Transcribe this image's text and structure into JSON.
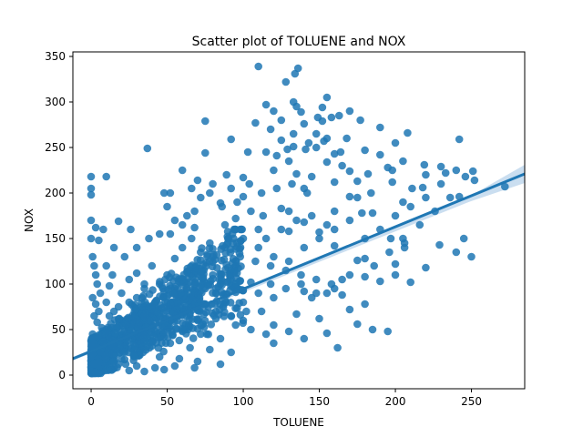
{
  "chart_data": {
    "type": "scatter",
    "title": "Scatter plot of TOLUENE and NOX",
    "xlabel": "TOLUENE",
    "ylabel": "NOX",
    "xlim": [
      -12,
      285
    ],
    "ylim": [
      -15,
      355
    ],
    "xticks": [
      0,
      50,
      100,
      150,
      200,
      250
    ],
    "yticks": [
      0,
      50,
      100,
      150,
      200,
      250,
      300,
      350
    ],
    "grid": false,
    "point_color": "#1f77b4",
    "regression_line": {
      "x": [
        -12,
        285
      ],
      "y": [
        18,
        221
      ],
      "color": "#1f77b4",
      "ci_color": "#a6c8e6"
    },
    "points": [
      [
        0,
        218
      ],
      [
        0,
        205
      ],
      [
        0,
        198
      ],
      [
        10,
        218
      ],
      [
        0,
        170
      ],
      [
        3,
        162
      ],
      [
        8,
        160
      ],
      [
        18,
        169
      ],
      [
        0,
        150
      ],
      [
        5,
        148
      ],
      [
        110,
        339
      ],
      [
        136,
        337
      ],
      [
        134,
        331
      ],
      [
        128,
        322
      ],
      [
        155,
        305
      ],
      [
        133,
        300
      ],
      [
        115,
        297
      ],
      [
        135,
        295
      ],
      [
        152,
        294
      ],
      [
        120,
        290
      ],
      [
        138,
        289
      ],
      [
        170,
        290
      ],
      [
        163,
        285
      ],
      [
        149,
        283
      ],
      [
        158,
        283
      ],
      [
        125,
        280
      ],
      [
        75,
        279
      ],
      [
        152,
        279
      ],
      [
        177,
        280
      ],
      [
        108,
        277
      ],
      [
        140,
        276
      ],
      [
        118,
        270
      ],
      [
        190,
        272
      ],
      [
        208,
        266
      ],
      [
        133,
        265
      ],
      [
        148,
        265
      ],
      [
        168,
        260
      ],
      [
        155,
        260
      ],
      [
        92,
        259
      ],
      [
        242,
        259
      ],
      [
        125,
        258
      ],
      [
        37,
        249
      ],
      [
        153,
        257
      ],
      [
        143,
        255
      ],
      [
        200,
        255
      ],
      [
        133,
        251
      ],
      [
        148,
        250
      ],
      [
        129,
        248
      ],
      [
        141,
        248
      ],
      [
        103,
        245
      ],
      [
        180,
        247
      ],
      [
        115,
        245
      ],
      [
        164,
        245
      ],
      [
        160,
        243
      ],
      [
        190,
        242
      ],
      [
        75,
        244
      ],
      [
        122,
        241
      ],
      [
        130,
        235
      ],
      [
        155,
        234
      ],
      [
        205,
        235
      ],
      [
        219,
        231
      ],
      [
        165,
        230
      ],
      [
        230,
        229
      ],
      [
        195,
        228
      ],
      [
        60,
        225
      ],
      [
        120,
        225
      ],
      [
        170,
        224
      ],
      [
        240,
        225
      ],
      [
        198,
        225
      ],
      [
        89,
        220
      ],
      [
        182,
        221
      ],
      [
        135,
        221
      ],
      [
        220,
        220
      ],
      [
        251,
        224
      ],
      [
        233,
        222
      ],
      [
        145,
        218
      ],
      [
        100,
        217
      ],
      [
        246,
        218
      ],
      [
        70,
        214
      ],
      [
        175,
        213
      ],
      [
        160,
        212
      ],
      [
        252,
        214
      ],
      [
        198,
        212
      ],
      [
        272,
        207
      ],
      [
        230,
        210
      ],
      [
        211,
        205
      ],
      [
        140,
        205
      ],
      [
        218,
        206
      ],
      [
        184,
        200
      ],
      [
        48,
        200
      ],
      [
        170,
        196
      ],
      [
        242,
        196
      ],
      [
        52,
        200
      ],
      [
        100,
        196
      ],
      [
        175,
        195
      ],
      [
        205,
        190
      ],
      [
        85,
        189
      ],
      [
        125,
        183
      ],
      [
        160,
        180
      ],
      [
        130,
        180
      ],
      [
        178,
        178
      ],
      [
        185,
        178
      ],
      [
        113,
        175
      ],
      [
        63,
        175
      ],
      [
        95,
        172
      ],
      [
        140,
        168
      ],
      [
        155,
        165
      ],
      [
        68,
        162
      ],
      [
        110,
        160
      ],
      [
        130,
        158
      ],
      [
        150,
        157
      ],
      [
        45,
        155
      ],
      [
        205,
        150
      ],
      [
        197,
        150
      ],
      [
        245,
        150
      ],
      [
        229,
        143
      ],
      [
        160,
        142
      ],
      [
        206,
        140
      ],
      [
        240,
        135
      ],
      [
        250,
        130
      ],
      [
        180,
        128
      ],
      [
        175,
        126
      ],
      [
        200,
        122
      ],
      [
        220,
        118
      ],
      [
        200,
        110
      ],
      [
        180,
        108
      ],
      [
        165,
        105
      ],
      [
        190,
        103
      ],
      [
        210,
        102
      ],
      [
        160,
        95
      ],
      [
        140,
        92
      ],
      [
        165,
        88
      ],
      [
        155,
        90
      ],
      [
        120,
        85
      ],
      [
        145,
        85
      ],
      [
        180,
        78
      ],
      [
        170,
        72
      ],
      [
        135,
        67
      ],
      [
        150,
        62
      ],
      [
        175,
        56
      ],
      [
        185,
        50
      ],
      [
        195,
        48
      ],
      [
        155,
        46
      ],
      [
        162,
        30
      ],
      [
        140,
        40
      ],
      [
        120,
        35
      ],
      [
        130,
        48
      ],
      [
        115,
        45
      ],
      [
        120,
        55
      ],
      [
        100,
        60
      ],
      [
        60,
        140
      ],
      [
        72,
        135
      ],
      [
        55,
        128
      ],
      [
        40,
        120
      ],
      [
        30,
        112
      ],
      [
        80,
        110
      ],
      [
        90,
        118
      ],
      [
        65,
        115
      ],
      [
        25,
        105
      ],
      [
        12,
        98
      ],
      [
        35,
        95
      ],
      [
        48,
        92
      ],
      [
        70,
        90
      ],
      [
        82,
        95
      ],
      [
        95,
        100
      ],
      [
        105,
        102
      ],
      [
        58,
        85
      ],
      [
        42,
        80
      ],
      [
        28,
        75
      ],
      [
        15,
        70
      ],
      [
        62,
        72
      ],
      [
        75,
        78
      ],
      [
        88,
        82
      ],
      [
        100,
        80
      ],
      [
        110,
        90
      ],
      [
        20,
        60
      ],
      [
        33,
        62
      ],
      [
        45,
        58
      ],
      [
        57,
        65
      ],
      [
        70,
        60
      ],
      [
        82,
        62
      ],
      [
        95,
        55
      ],
      [
        105,
        50
      ],
      [
        10,
        50
      ],
      [
        22,
        48
      ],
      [
        35,
        45
      ],
      [
        48,
        42
      ],
      [
        60,
        48
      ],
      [
        72,
        45
      ],
      [
        85,
        40
      ],
      [
        15,
        30
      ],
      [
        28,
        28
      ],
      [
        40,
        32
      ],
      [
        52,
        35
      ],
      [
        65,
        30
      ],
      [
        78,
        28
      ],
      [
        92,
        25
      ],
      [
        8,
        20
      ],
      [
        20,
        18
      ],
      [
        32,
        22
      ],
      [
        45,
        20
      ],
      [
        58,
        18
      ],
      [
        70,
        15
      ],
      [
        85,
        12
      ],
      [
        5,
        10
      ],
      [
        18,
        12
      ],
      [
        30,
        10
      ],
      [
        42,
        8
      ],
      [
        55,
        10
      ],
      [
        68,
        8
      ],
      [
        2,
        5
      ],
      [
        12,
        6
      ],
      [
        25,
        5
      ],
      [
        35,
        4
      ],
      [
        48,
        6
      ],
      [
        1,
        130
      ],
      [
        2,
        120
      ],
      [
        3,
        110
      ],
      [
        4,
        100
      ],
      [
        6,
        90
      ],
      [
        1,
        85
      ],
      [
        3,
        78
      ],
      [
        5,
        70
      ],
      [
        2,
        65
      ],
      [
        4,
        58
      ],
      [
        7,
        52
      ],
      [
        1,
        45
      ],
      [
        3,
        40
      ],
      [
        6,
        35
      ],
      [
        2,
        28
      ],
      [
        5,
        22
      ],
      [
        1,
        15
      ],
      [
        8,
        40
      ],
      [
        10,
        80
      ],
      [
        14,
        110
      ],
      [
        22,
        130
      ],
      [
        30,
        140
      ],
      [
        38,
        150
      ],
      [
        52,
        155
      ],
      [
        66,
        150
      ],
      [
        78,
        145
      ],
      [
        88,
        140
      ],
      [
        98,
        130
      ],
      [
        108,
        125
      ],
      [
        118,
        120
      ],
      [
        128,
        115
      ],
      [
        138,
        110
      ],
      [
        148,
        105
      ],
      [
        50,
        110
      ],
      [
        60,
        100
      ],
      [
        40,
        70
      ],
      [
        50,
        75
      ],
      [
        30,
        85
      ],
      [
        20,
        90
      ],
      [
        10,
        120
      ],
      [
        15,
        140
      ],
      [
        26,
        160
      ],
      [
        88,
        165
      ],
      [
        96,
        190
      ],
      [
        104,
        210
      ],
      [
        112,
        200
      ],
      [
        122,
        205
      ],
      [
        132,
        210
      ],
      [
        142,
        200
      ],
      [
        90,
        150
      ],
      [
        100,
        150
      ],
      [
        110,
        140
      ],
      [
        120,
        130
      ],
      [
        130,
        125
      ],
      [
        80,
        130
      ],
      [
        95,
        120
      ],
      [
        85,
        100
      ],
      [
        75,
        95
      ],
      [
        65,
        85
      ],
      [
        55,
        95
      ],
      [
        45,
        100
      ],
      [
        35,
        100
      ],
      [
        25,
        80
      ],
      [
        18,
        75
      ],
      [
        12,
        65
      ],
      [
        112,
        70
      ],
      [
        102,
        70
      ],
      [
        92,
        65
      ],
      [
        82,
        70
      ],
      [
        118,
        100
      ],
      [
        128,
        95
      ],
      [
        138,
        100
      ],
      [
        148,
        90
      ],
      [
        158,
        100
      ],
      [
        170,
        110
      ],
      [
        115,
        150
      ],
      [
        125,
        160
      ],
      [
        135,
        170
      ],
      [
        145,
        175
      ],
      [
        105,
        180
      ],
      [
        92,
        205
      ],
      [
        80,
        210
      ],
      [
        72,
        195
      ],
      [
        68,
        180
      ],
      [
        60,
        165
      ],
      [
        55,
        170
      ],
      [
        50,
        185
      ],
      [
        66,
        205
      ],
      [
        78,
        200
      ],
      [
        86,
        185
      ],
      [
        140,
        140
      ],
      [
        150,
        150
      ],
      [
        160,
        160
      ],
      [
        170,
        170
      ],
      [
        180,
        150
      ],
      [
        190,
        160
      ],
      [
        200,
        175
      ],
      [
        210,
        185
      ],
      [
        220,
        195
      ],
      [
        186,
        120
      ],
      [
        196,
        135
      ],
      [
        206,
        145
      ],
      [
        216,
        165
      ],
      [
        226,
        180
      ],
      [
        236,
        195
      ]
    ]
  }
}
